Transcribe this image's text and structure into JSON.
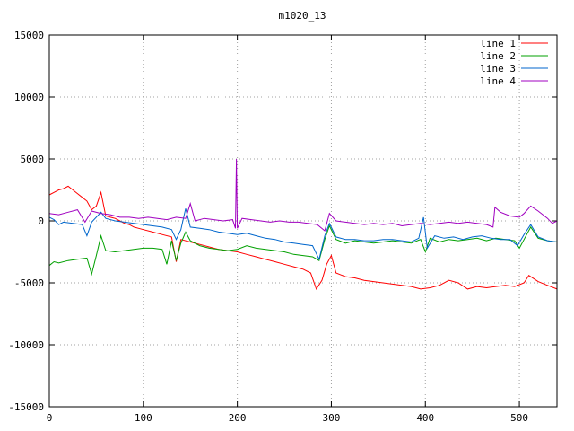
{
  "chart_data": {
    "type": "line",
    "title": "m1020_13",
    "xlabel": "",
    "ylabel": "",
    "xlim": [
      0,
      540
    ],
    "ylim": [
      -15000,
      15000
    ],
    "xticks": [
      0,
      100,
      200,
      300,
      400,
      500
    ],
    "yticks": [
      -15000,
      -10000,
      -5000,
      0,
      5000,
      10000,
      15000
    ],
    "grid": true,
    "legend_position": "top-right",
    "series": [
      {
        "name": "line 1",
        "color": "#ff0000",
        "points": [
          [
            0,
            2100
          ],
          [
            5,
            2300
          ],
          [
            10,
            2500
          ],
          [
            15,
            2600
          ],
          [
            20,
            2800
          ],
          [
            25,
            2500
          ],
          [
            30,
            2200
          ],
          [
            35,
            1900
          ],
          [
            40,
            1600
          ],
          [
            45,
            900
          ],
          [
            50,
            1200
          ],
          [
            55,
            2300
          ],
          [
            60,
            400
          ],
          [
            65,
            300
          ],
          [
            70,
            200
          ],
          [
            75,
            0
          ],
          [
            80,
            -200
          ],
          [
            85,
            -300
          ],
          [
            90,
            -500
          ],
          [
            95,
            -600
          ],
          [
            100,
            -700
          ],
          [
            110,
            -900
          ],
          [
            120,
            -1100
          ],
          [
            130,
            -1300
          ],
          [
            135,
            -3300
          ],
          [
            140,
            -1500
          ],
          [
            150,
            -1700
          ],
          [
            160,
            -1900
          ],
          [
            170,
            -2100
          ],
          [
            180,
            -2300
          ],
          [
            190,
            -2400
          ],
          [
            200,
            -2500
          ],
          [
            210,
            -2700
          ],
          [
            220,
            -2900
          ],
          [
            230,
            -3100
          ],
          [
            240,
            -3300
          ],
          [
            250,
            -3500
          ],
          [
            260,
            -3700
          ],
          [
            270,
            -3900
          ],
          [
            278,
            -4200
          ],
          [
            284,
            -5500
          ],
          [
            290,
            -4800
          ],
          [
            295,
            -3500
          ],
          [
            300,
            -2800
          ],
          [
            305,
            -4200
          ],
          [
            315,
            -4500
          ],
          [
            325,
            -4600
          ],
          [
            335,
            -4800
          ],
          [
            345,
            -4900
          ],
          [
            355,
            -5000
          ],
          [
            365,
            -5100
          ],
          [
            375,
            -5200
          ],
          [
            385,
            -5300
          ],
          [
            395,
            -5500
          ],
          [
            405,
            -5400
          ],
          [
            415,
            -5200
          ],
          [
            425,
            -4800
          ],
          [
            435,
            -5000
          ],
          [
            445,
            -5500
          ],
          [
            455,
            -5300
          ],
          [
            465,
            -5400
          ],
          [
            475,
            -5300
          ],
          [
            485,
            -5200
          ],
          [
            495,
            -5300
          ],
          [
            505,
            -5000
          ],
          [
            510,
            -4400
          ],
          [
            520,
            -4900
          ],
          [
            530,
            -5200
          ],
          [
            540,
            -5500
          ]
        ]
      },
      {
        "name": "line 2",
        "color": "#00a000",
        "points": [
          [
            0,
            -3600
          ],
          [
            5,
            -3300
          ],
          [
            10,
            -3400
          ],
          [
            20,
            -3200
          ],
          [
            30,
            -3100
          ],
          [
            40,
            -3000
          ],
          [
            45,
            -4300
          ],
          [
            50,
            -2800
          ],
          [
            55,
            -1200
          ],
          [
            60,
            -2400
          ],
          [
            70,
            -2500
          ],
          [
            80,
            -2400
          ],
          [
            90,
            -2300
          ],
          [
            100,
            -2200
          ],
          [
            110,
            -2200
          ],
          [
            120,
            -2300
          ],
          [
            125,
            -3500
          ],
          [
            130,
            -1600
          ],
          [
            135,
            -3200
          ],
          [
            140,
            -1800
          ],
          [
            145,
            -900
          ],
          [
            150,
            -1600
          ],
          [
            160,
            -2000
          ],
          [
            170,
            -2200
          ],
          [
            180,
            -2300
          ],
          [
            190,
            -2400
          ],
          [
            200,
            -2300
          ],
          [
            210,
            -2000
          ],
          [
            220,
            -2200
          ],
          [
            230,
            -2300
          ],
          [
            240,
            -2400
          ],
          [
            250,
            -2500
          ],
          [
            260,
            -2700
          ],
          [
            270,
            -2800
          ],
          [
            280,
            -2900
          ],
          [
            287,
            -3200
          ],
          [
            293,
            -1500
          ],
          [
            298,
            -400
          ],
          [
            305,
            -1500
          ],
          [
            315,
            -1800
          ],
          [
            325,
            -1600
          ],
          [
            335,
            -1700
          ],
          [
            345,
            -1800
          ],
          [
            355,
            -1700
          ],
          [
            365,
            -1600
          ],
          [
            375,
            -1700
          ],
          [
            385,
            -1800
          ],
          [
            395,
            -1500
          ],
          [
            400,
            -2500
          ],
          [
            405,
            -1400
          ],
          [
            415,
            -1700
          ],
          [
            425,
            -1500
          ],
          [
            435,
            -1600
          ],
          [
            445,
            -1500
          ],
          [
            455,
            -1400
          ],
          [
            465,
            -1600
          ],
          [
            475,
            -1400
          ],
          [
            485,
            -1500
          ],
          [
            495,
            -1600
          ],
          [
            500,
            -2200
          ],
          [
            505,
            -1500
          ],
          [
            512,
            -500
          ],
          [
            520,
            -1400
          ],
          [
            530,
            -1600
          ],
          [
            540,
            -1700
          ]
        ]
      },
      {
        "name": "line 3",
        "color": "#0066cc",
        "points": [
          [
            0,
            300
          ],
          [
            5,
            100
          ],
          [
            10,
            -300
          ],
          [
            15,
            -100
          ],
          [
            25,
            -200
          ],
          [
            35,
            -300
          ],
          [
            40,
            -1200
          ],
          [
            45,
            -100
          ],
          [
            55,
            700
          ],
          [
            60,
            200
          ],
          [
            70,
            0
          ],
          [
            80,
            -100
          ],
          [
            90,
            -200
          ],
          [
            100,
            -300
          ],
          [
            110,
            -400
          ],
          [
            120,
            -500
          ],
          [
            130,
            -700
          ],
          [
            135,
            -1500
          ],
          [
            140,
            -700
          ],
          [
            145,
            1000
          ],
          [
            150,
            -500
          ],
          [
            160,
            -600
          ],
          [
            170,
            -700
          ],
          [
            180,
            -900
          ],
          [
            190,
            -1000
          ],
          [
            200,
            -1100
          ],
          [
            210,
            -1000
          ],
          [
            220,
            -1200
          ],
          [
            230,
            -1400
          ],
          [
            240,
            -1500
          ],
          [
            250,
            -1700
          ],
          [
            260,
            -1800
          ],
          [
            270,
            -1900
          ],
          [
            280,
            -2000
          ],
          [
            287,
            -3100
          ],
          [
            293,
            -1200
          ],
          [
            298,
            -200
          ],
          [
            305,
            -1300
          ],
          [
            315,
            -1500
          ],
          [
            325,
            -1500
          ],
          [
            335,
            -1600
          ],
          [
            345,
            -1600
          ],
          [
            355,
            -1500
          ],
          [
            365,
            -1500
          ],
          [
            375,
            -1600
          ],
          [
            385,
            -1700
          ],
          [
            393,
            -1400
          ],
          [
            398,
            300
          ],
          [
            402,
            -2200
          ],
          [
            410,
            -1200
          ],
          [
            420,
            -1400
          ],
          [
            430,
            -1300
          ],
          [
            440,
            -1500
          ],
          [
            450,
            -1300
          ],
          [
            460,
            -1200
          ],
          [
            470,
            -1400
          ],
          [
            480,
            -1500
          ],
          [
            490,
            -1500
          ],
          [
            498,
            -2000
          ],
          [
            505,
            -1100
          ],
          [
            512,
            -300
          ],
          [
            520,
            -1300
          ],
          [
            530,
            -1600
          ],
          [
            540,
            -1700
          ]
        ]
      },
      {
        "name": "line 4",
        "color": "#a000c0",
        "points": [
          [
            0,
            600
          ],
          [
            10,
            500
          ],
          [
            20,
            700
          ],
          [
            30,
            900
          ],
          [
            38,
            -100
          ],
          [
            45,
            800
          ],
          [
            55,
            600
          ],
          [
            65,
            500
          ],
          [
            75,
            300
          ],
          [
            85,
            300
          ],
          [
            95,
            200
          ],
          [
            105,
            300
          ],
          [
            115,
            200
          ],
          [
            125,
            100
          ],
          [
            135,
            300
          ],
          [
            145,
            200
          ],
          [
            150,
            1400
          ],
          [
            155,
            0
          ],
          [
            165,
            200
          ],
          [
            175,
            100
          ],
          [
            185,
            0
          ],
          [
            195,
            100
          ],
          [
            198,
            -600
          ],
          [
            199,
            5000
          ],
          [
            200,
            -600
          ],
          [
            205,
            200
          ],
          [
            215,
            100
          ],
          [
            225,
            0
          ],
          [
            235,
            -100
          ],
          [
            245,
            0
          ],
          [
            255,
            -100
          ],
          [
            265,
            -100
          ],
          [
            275,
            -200
          ],
          [
            285,
            -300
          ],
          [
            293,
            -800
          ],
          [
            298,
            600
          ],
          [
            305,
            0
          ],
          [
            315,
            -100
          ],
          [
            325,
            -200
          ],
          [
            335,
            -300
          ],
          [
            345,
            -200
          ],
          [
            355,
            -300
          ],
          [
            365,
            -200
          ],
          [
            375,
            -400
          ],
          [
            385,
            -300
          ],
          [
            395,
            -200
          ],
          [
            405,
            -300
          ],
          [
            415,
            -200
          ],
          [
            425,
            -100
          ],
          [
            435,
            -200
          ],
          [
            445,
            -100
          ],
          [
            455,
            -200
          ],
          [
            465,
            -300
          ],
          [
            472,
            -500
          ],
          [
            474,
            1100
          ],
          [
            480,
            700
          ],
          [
            490,
            400
          ],
          [
            500,
            300
          ],
          [
            505,
            600
          ],
          [
            512,
            1200
          ],
          [
            520,
            800
          ],
          [
            530,
            200
          ],
          [
            535,
            -200
          ],
          [
            540,
            0
          ]
        ]
      }
    ]
  }
}
